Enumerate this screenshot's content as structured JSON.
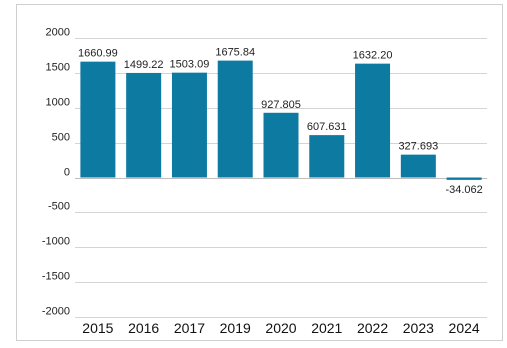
{
  "chart_data": {
    "type": "bar",
    "categories": [
      "2015",
      "2016",
      "2017",
      "2019",
      "2020",
      "2021",
      "2022",
      "2023",
      "2024"
    ],
    "values": [
      1660.99,
      1499.22,
      1503.09,
      1675.84,
      927.805,
      607.631,
      1632.2,
      327.693,
      -34.062
    ],
    "data_labels": [
      "1660.99",
      "1499.22",
      "1503.09",
      "1675.84",
      "927.805",
      "607.631",
      "1632.20",
      "327.693",
      "-34.062"
    ],
    "y_ticks": [
      2000,
      1500,
      1000,
      500,
      0,
      -500,
      -1000,
      -1500,
      -2000
    ],
    "ylim": [
      -2000,
      2000
    ],
    "grid": true,
    "bar_color": "#0c7aa1",
    "grid_color": "#d4d4d4",
    "title": "",
    "xlabel": "",
    "ylabel": ""
  }
}
